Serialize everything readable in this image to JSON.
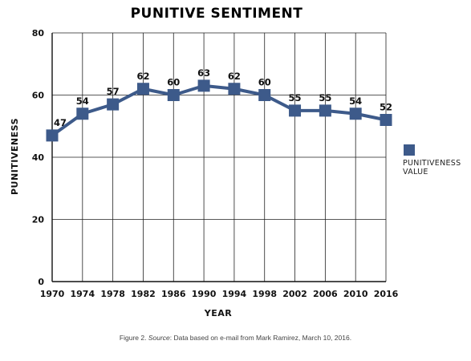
{
  "chart_data": {
    "type": "line",
    "title": "PUNITIVE SENTIMENT",
    "xlabel": "YEAR",
    "ylabel": "PUNITIVENESS",
    "categories": [
      "1970",
      "1974",
      "1978",
      "1982",
      "1986",
      "1990",
      "1994",
      "1998",
      "2002",
      "2006",
      "2010",
      "2016"
    ],
    "series": [
      {
        "name": "PUNITIVENESS VALUE",
        "values": [
          47,
          54,
          57,
          62,
          60,
          63,
          62,
          60,
          55,
          55,
          54,
          52
        ],
        "color": "#3d5a8a"
      }
    ],
    "ylim": [
      0,
      80
    ],
    "yticks": [
      0,
      20,
      40,
      60,
      80
    ],
    "grid": true,
    "legend_position": "right"
  },
  "legend": {
    "line1": "PUNITIVENESS",
    "line2": "VALUE"
  },
  "caption": {
    "prefix": "Figure 2. ",
    "source_word": "Source",
    "text": ": Data based on e-mail from Mark Ramirez, March 10, 2016."
  }
}
